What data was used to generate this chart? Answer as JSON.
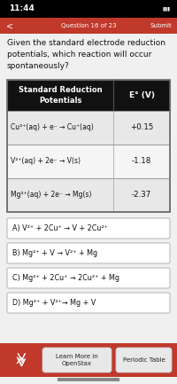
{
  "status_bar_time": "11:44",
  "question_nav": "Question 16 of 23",
  "submit_text": "Submit",
  "question_text": "Given the standard electrode reduction\npotentials, which reaction will occur\nspontaneously?",
  "table_header_left": "Standard Reduction\nPotentials",
  "table_header_right": "E° (V)",
  "table_rows": [
    {
      "reaction": "Cu²⁺(aq) + e⁻ → Cu⁺(aq)",
      "value": "+0.15"
    },
    {
      "reaction": "V²⁺(aq) + 2e⁻ → V(s)",
      "value": "-1.18"
    },
    {
      "reaction": "Mg²⁺(aq) + 2e⁻ → Mg(s)",
      "value": "-2.37"
    }
  ],
  "options": [
    "A) V²⁺ + 2Cu⁺ → V + 2Cu²⁺",
    "B) Mg²⁺ + V → V²⁺ + Mg",
    "C) Mg²⁺ + 2Cu⁺ → 2Cu²⁺ + Mg",
    "D) Mg²⁺ + V²⁺→ Mg + V"
  ],
  "footer_left": "Learn More in\nOpenStax",
  "footer_right": "Periodic Table",
  "bg_color": "#f0f0f0",
  "header_bg": "#c0392b",
  "table_header_bg": "#111111",
  "table_header_fg": "#ffffff",
  "table_row_bg_light": "#e8e8e8",
  "table_row_bg_white": "#f5f5f5",
  "table_border": "#888888",
  "option_border": "#bbbbbb",
  "option_bg": "#ffffff",
  "footer_bg": "#c0392b",
  "footer_fg": "#ffffff",
  "status_bar_bg": "#000000",
  "status_bar_fg": "#ffffff",
  "nav_bar_bg": "#c0392b"
}
